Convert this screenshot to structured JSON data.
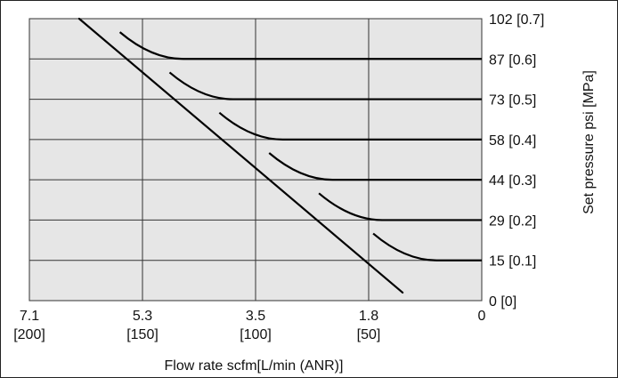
{
  "chart_data": {
    "type": "line",
    "title": "",
    "xlabel": "Flow rate  scfm[L/min (ANR)]",
    "ylabel": "Set pressure  psi [MPa]",
    "x_axis_reversed": true,
    "xlim": [
      0,
      200
    ],
    "ylim": [
      0,
      0.7
    ],
    "x_ticks": [
      {
        "value": 200,
        "label_top": "7.1",
        "label_bottom": "[200]"
      },
      {
        "value": 150,
        "label_top": "5.3",
        "label_bottom": "[150]"
      },
      {
        "value": 100,
        "label_top": "3.5",
        "label_bottom": "[100]"
      },
      {
        "value": 50,
        "label_top": "1.8",
        "label_bottom": "[50]"
      },
      {
        "value": 0,
        "label_top": "0",
        "label_bottom": ""
      }
    ],
    "y_ticks": [
      {
        "value": 0.0,
        "label": "0 [0]"
      },
      {
        "value": 0.1,
        "label": "15 [0.1]"
      },
      {
        "value": 0.2,
        "label": "29 [0.2]"
      },
      {
        "value": 0.3,
        "label": "44 [0.3]"
      },
      {
        "value": 0.4,
        "label": "58 [0.4]"
      },
      {
        "value": 0.5,
        "label": "73 [0.5]"
      },
      {
        "value": 0.6,
        "label": "87 [0.6]"
      },
      {
        "value": 0.7,
        "label": "102 [0.7]"
      }
    ],
    "grid": true,
    "background": "#e6e6e6",
    "line_color": "#000000",
    "envelope": [
      [
        178,
        0.7
      ],
      [
        35,
        0.02
      ]
    ],
    "series": [
      {
        "values": [
          [
            34,
            0.1
          ],
          [
            0,
            0.1
          ]
        ]
      },
      {
        "values": [
          [
            58,
            0.2
          ],
          [
            0,
            0.2
          ]
        ]
      },
      {
        "values": [
          [
            80,
            0.3
          ],
          [
            0,
            0.3
          ]
        ]
      },
      {
        "values": [
          [
            102,
            0.4
          ],
          [
            0,
            0.4
          ]
        ]
      },
      {
        "values": [
          [
            124,
            0.5
          ],
          [
            0,
            0.5
          ]
        ]
      },
      {
        "values": [
          [
            146,
            0.6
          ],
          [
            0,
            0.6
          ]
        ]
      }
    ]
  }
}
